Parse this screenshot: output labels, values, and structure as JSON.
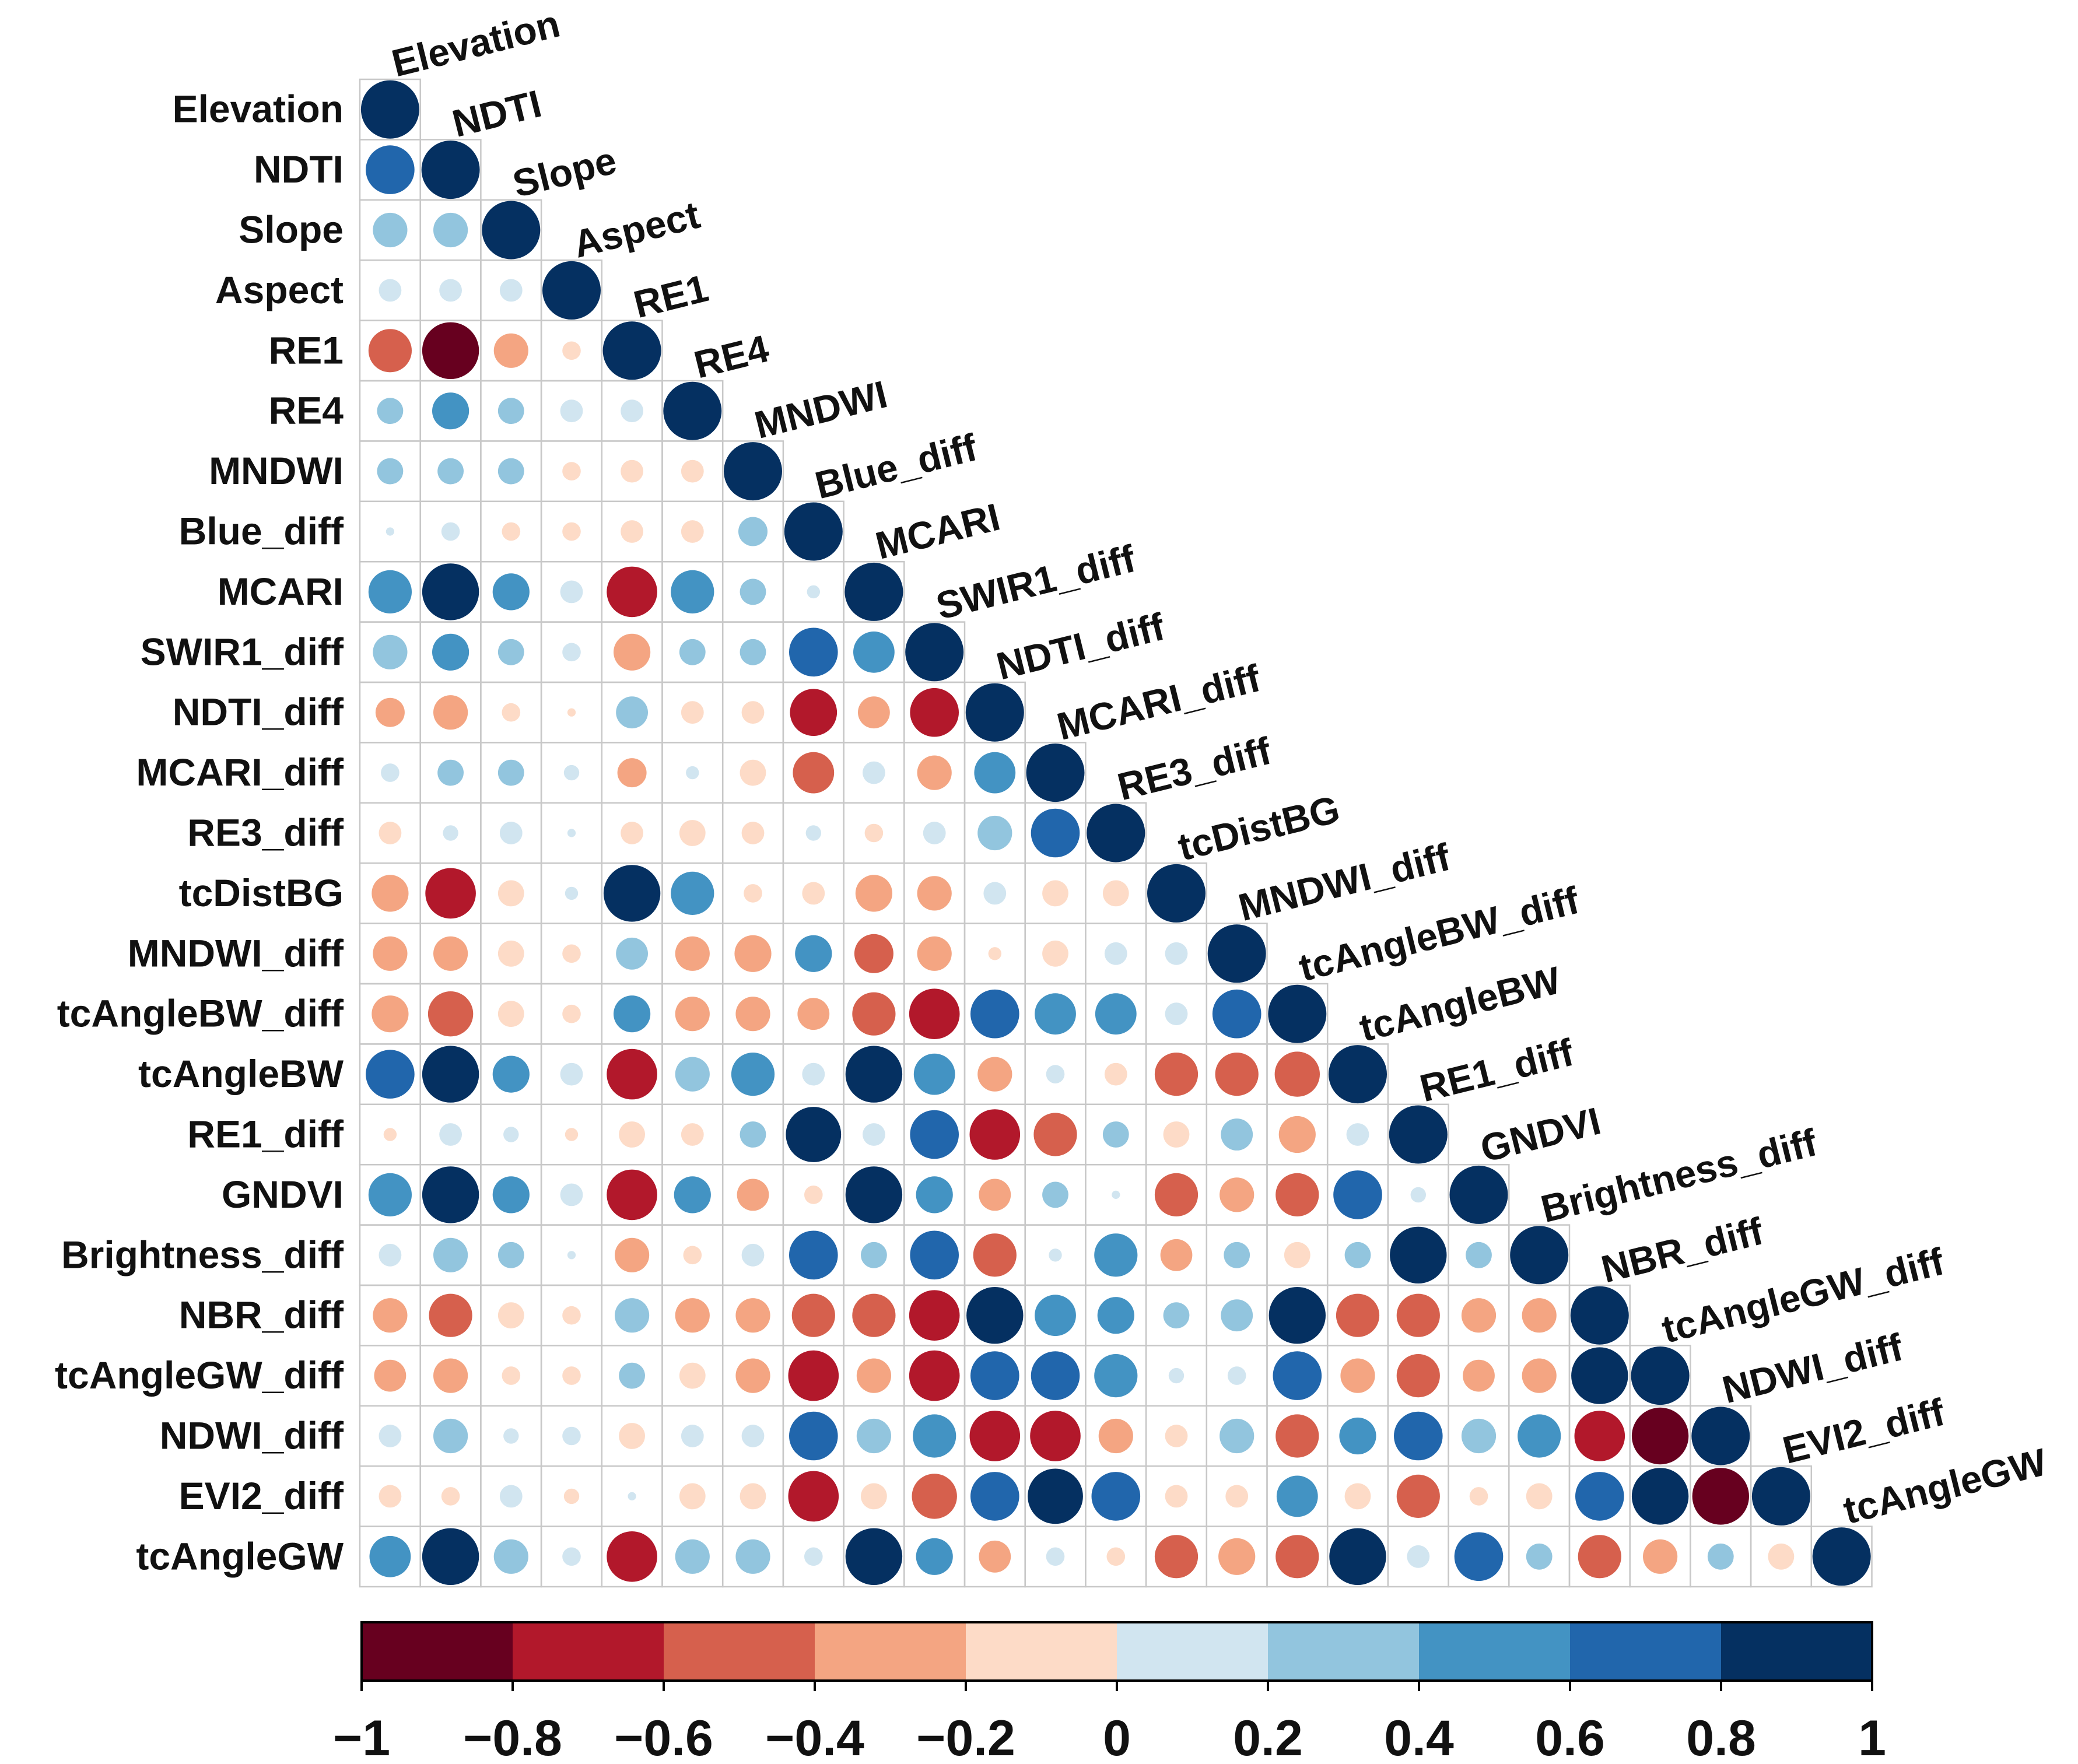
{
  "chart_data": {
    "type": "heatmap",
    "title": "",
    "variables": [
      "Elevation",
      "NDTI",
      "Slope",
      "Aspect",
      "RE1",
      "RE4",
      "MNDWI",
      "Blue_diff",
      "MCARI",
      "SWIR1_diff",
      "NDTI_diff",
      "MCARI_diff",
      "RE3_diff",
      "tcDistBG",
      "MNDWI_diff",
      "tcAngleBW_diff",
      "tcAngleBW",
      "RE1_diff",
      "GNDVI",
      "Brightness_diff",
      "NBR_diff",
      "tcAngleGW_diff",
      "NDWI_diff",
      "EVI2_diff",
      "tcAngleGW"
    ],
    "lower_triangle": [
      [
        1.0
      ],
      [
        0.7,
        1.0
      ],
      [
        0.35,
        0.35,
        1.0
      ],
      [
        0.15,
        0.15,
        0.15,
        1.0
      ],
      [
        -0.55,
        -0.95,
        -0.35,
        -0.1,
        1.0
      ],
      [
        0.2,
        0.4,
        0.2,
        0.15,
        0.15,
        1.0
      ],
      [
        0.2,
        0.2,
        0.2,
        -0.1,
        -0.15,
        -0.15,
        1.0
      ],
      [
        0.02,
        0.1,
        -0.1,
        -0.1,
        -0.15,
        -0.15,
        0.25,
        1.0
      ],
      [
        0.55,
        0.95,
        0.4,
        0.15,
        -0.75,
        0.55,
        0.2,
        0.05,
        1.0
      ],
      [
        0.35,
        0.4,
        0.2,
        0.1,
        -0.4,
        0.2,
        0.2,
        0.7,
        0.5,
        1.0
      ],
      [
        -0.25,
        -0.35,
        -0.1,
        -0.02,
        0.3,
        -0.15,
        -0.15,
        -0.65,
        -0.3,
        -0.7,
        1.0
      ],
      [
        0.1,
        0.2,
        0.2,
        0.07,
        -0.25,
        0.05,
        -0.2,
        -0.5,
        0.15,
        -0.35,
        0.5,
        1.0
      ],
      [
        -0.15,
        0.07,
        0.15,
        0.02,
        -0.15,
        -0.2,
        -0.15,
        0.07,
        -0.1,
        0.15,
        0.35,
        0.7,
        1.0
      ],
      [
        -0.4,
        -0.75,
        -0.2,
        0.05,
        0.95,
        0.55,
        -0.1,
        -0.15,
        -0.4,
        -0.35,
        0.15,
        -0.2,
        -0.2,
        1.0
      ],
      [
        -0.35,
        -0.35,
        -0.2,
        -0.1,
        0.3,
        -0.35,
        -0.4,
        0.4,
        -0.45,
        -0.35,
        -0.05,
        -0.2,
        0.15,
        0.15,
        1.0
      ],
      [
        -0.4,
        -0.6,
        -0.2,
        -0.1,
        0.4,
        -0.35,
        -0.35,
        -0.3,
        -0.55,
        -0.75,
        0.7,
        0.5,
        0.5,
        0.15,
        0.7,
        1.0
      ],
      [
        0.7,
        0.95,
        0.4,
        0.15,
        -0.75,
        0.35,
        0.55,
        0.15,
        0.95,
        0.5,
        -0.35,
        0.1,
        -0.15,
        -0.55,
        -0.55,
        -0.6,
        1.0
      ],
      [
        -0.05,
        0.15,
        0.07,
        -0.05,
        -0.2,
        -0.15,
        0.2,
        0.9,
        0.15,
        0.7,
        -0.75,
        -0.55,
        0.2,
        -0.2,
        0.3,
        -0.4,
        0.15,
        1.0
      ],
      [
        0.55,
        0.95,
        0.4,
        0.15,
        -0.75,
        0.4,
        -0.3,
        -0.1,
        0.95,
        0.4,
        -0.3,
        0.2,
        0.02,
        -0.55,
        -0.35,
        -0.55,
        0.7,
        0.07,
        1.0
      ],
      [
        0.15,
        0.35,
        0.2,
        0.02,
        -0.35,
        -0.1,
        0.15,
        0.7,
        0.2,
        0.7,
        -0.55,
        0.05,
        0.55,
        -0.3,
        0.2,
        -0.2,
        0.2,
        0.95,
        0.2,
        1.0
      ],
      [
        -0.35,
        -0.55,
        -0.2,
        -0.1,
        0.35,
        -0.35,
        -0.35,
        -0.55,
        -0.55,
        -0.75,
        0.95,
        0.5,
        0.4,
        0.2,
        0.3,
        0.95,
        -0.55,
        -0.55,
        -0.35,
        -0.35,
        1.0
      ],
      [
        -0.3,
        -0.35,
        -0.1,
        -0.1,
        0.2,
        -0.2,
        -0.35,
        -0.75,
        -0.35,
        -0.75,
        0.7,
        0.7,
        0.55,
        0.07,
        0.1,
        0.7,
        -0.35,
        -0.55,
        -0.3,
        -0.35,
        0.95,
        1.0
      ],
      [
        0.15,
        0.35,
        0.07,
        0.1,
        -0.2,
        0.15,
        0.15,
        0.7,
        0.35,
        0.55,
        -0.75,
        -0.75,
        -0.35,
        -0.15,
        0.35,
        -0.55,
        0.4,
        0.7,
        0.35,
        0.55,
        -0.75,
        -0.95,
        1.0
      ],
      [
        -0.15,
        -0.1,
        0.15,
        -0.07,
        0.02,
        -0.2,
        -0.2,
        -0.75,
        -0.2,
        -0.6,
        0.7,
        0.9,
        0.7,
        -0.15,
        -0.15,
        0.5,
        -0.2,
        -0.55,
        -0.1,
        -0.2,
        0.7,
        0.95,
        -0.95,
        1.0
      ],
      [
        0.5,
        0.95,
        0.35,
        0.1,
        -0.75,
        0.35,
        0.35,
        0.1,
        0.95,
        0.4,
        -0.3,
        0.1,
        -0.1,
        -0.55,
        -0.4,
        -0.55,
        0.95,
        0.15,
        0.7,
        0.2,
        -0.55,
        -0.35,
        0.2,
        -0.2,
        1.0
      ]
    ],
    "colorbar": {
      "ticks": [
        "−1",
        "−0.8",
        "−0.6",
        "−0.4",
        "−0.2",
        "0",
        "0.2",
        "0.4",
        "0.6",
        "0.8",
        "1"
      ],
      "range": [
        -1,
        1
      ],
      "bins": [
        {
          "from": -1.0,
          "to": -0.8,
          "color": "#67001f"
        },
        {
          "from": -0.8,
          "to": -0.6,
          "color": "#b2182b"
        },
        {
          "from": -0.6,
          "to": -0.4,
          "color": "#d6604d"
        },
        {
          "from": -0.4,
          "to": -0.2,
          "color": "#f4a582"
        },
        {
          "from": -0.2,
          "to": 0.0,
          "color": "#fddbc7"
        },
        {
          "from": 0.0,
          "to": 0.2,
          "color": "#d1e5f0"
        },
        {
          "from": 0.2,
          "to": 0.4,
          "color": "#92c5de"
        },
        {
          "from": 0.4,
          "to": 0.6,
          "color": "#4393c3"
        },
        {
          "from": 0.6,
          "to": 0.8,
          "color": "#2166ac"
        },
        {
          "from": 0.8,
          "to": 1.0,
          "color": "#053061"
        }
      ]
    }
  }
}
